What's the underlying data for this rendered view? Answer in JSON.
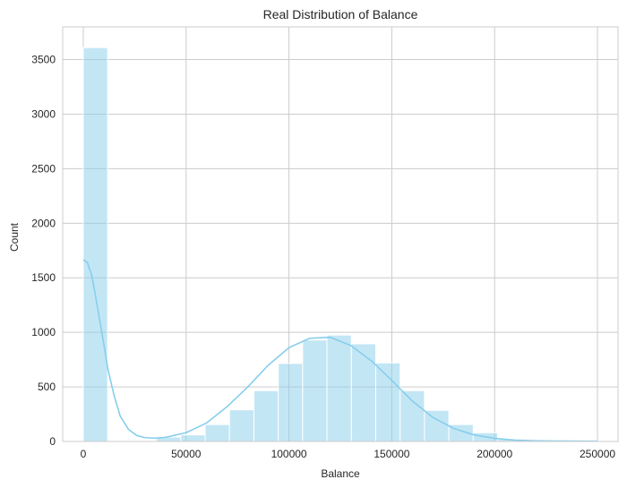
{
  "chart_data": {
    "type": "bar",
    "title": "Real Distribution of Balance",
    "xlabel": "Balance",
    "ylabel": "Count",
    "xlim": [
      -10000,
      260000
    ],
    "ylim": [
      0,
      3800
    ],
    "xticks": [
      0,
      50000,
      100000,
      150000,
      200000,
      250000
    ],
    "yticks": [
      0,
      500,
      1000,
      1500,
      2000,
      2500,
      3000,
      3500
    ],
    "grid": true,
    "bar_color": "#87ceeb",
    "line_color": "#87ceeb",
    "bins": [
      {
        "x0": 0,
        "x1": 11850,
        "count": 3610
      },
      {
        "x0": 11850,
        "x1": 23700,
        "count": 0
      },
      {
        "x0": 23700,
        "x1": 35550,
        "count": 3
      },
      {
        "x0": 35550,
        "x1": 47400,
        "count": 40
      },
      {
        "x0": 47400,
        "x1": 59250,
        "count": 60
      },
      {
        "x0": 59250,
        "x1": 71100,
        "count": 155
      },
      {
        "x0": 71100,
        "x1": 82950,
        "count": 290
      },
      {
        "x0": 82950,
        "x1": 94800,
        "count": 465
      },
      {
        "x0": 94800,
        "x1": 106650,
        "count": 715
      },
      {
        "x0": 106650,
        "x1": 118500,
        "count": 930
      },
      {
        "x0": 118500,
        "x1": 130350,
        "count": 975
      },
      {
        "x0": 130350,
        "x1": 142200,
        "count": 895
      },
      {
        "x0": 142200,
        "x1": 154050,
        "count": 720
      },
      {
        "x0": 154050,
        "x1": 165900,
        "count": 465
      },
      {
        "x0": 165900,
        "x1": 177750,
        "count": 285
      },
      {
        "x0": 177750,
        "x1": 189600,
        "count": 155
      },
      {
        "x0": 189600,
        "x1": 201450,
        "count": 80
      },
      {
        "x0": 201450,
        "x1": 213300,
        "count": 20
      },
      {
        "x0": 213300,
        "x1": 225150,
        "count": 10
      },
      {
        "x0": 225150,
        "x1": 237000,
        "count": 3
      },
      {
        "x0": 237000,
        "x1": 250898,
        "count": 2
      }
    ],
    "kde": {
      "x": [
        0,
        2000,
        4000,
        6000,
        8000,
        10000,
        12000,
        15000,
        18000,
        22000,
        26000,
        30000,
        35000,
        40000,
        50000,
        60000,
        70000,
        80000,
        90000,
        100000,
        110000,
        120000,
        130000,
        140000,
        150000,
        160000,
        170000,
        180000,
        190000,
        200000,
        210000,
        220000,
        230000,
        240000,
        250000
      ],
      "y": [
        1665,
        1640,
        1530,
        1330,
        1110,
        890,
        660,
        420,
        230,
        110,
        55,
        35,
        30,
        38,
        80,
        170,
        320,
        500,
        700,
        860,
        945,
        955,
        880,
        740,
        560,
        370,
        220,
        120,
        60,
        28,
        12,
        6,
        4,
        3,
        2
      ]
    }
  }
}
